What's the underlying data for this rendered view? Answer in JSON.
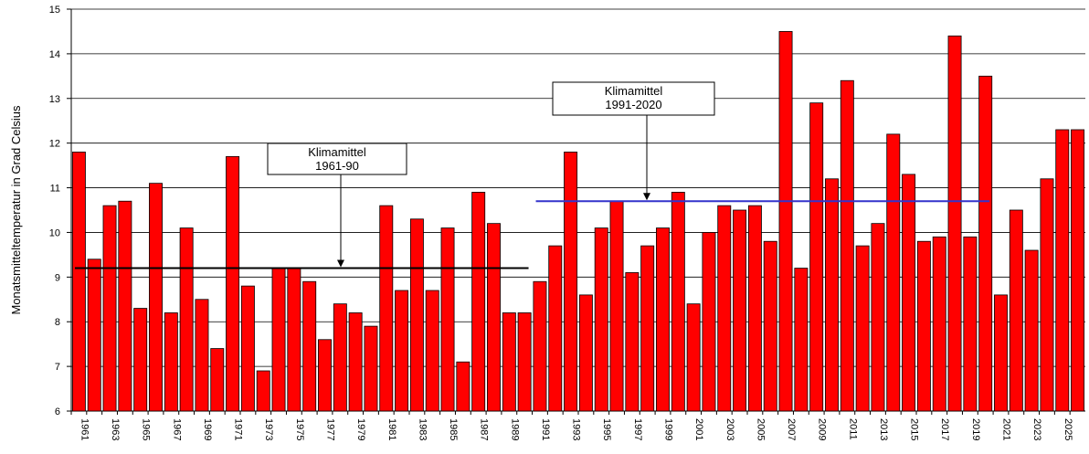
{
  "chart_data": {
    "type": "bar",
    "y_label": "Monatsmitteltemperatur in Grad Celsius",
    "categories": [
      "1961",
      null,
      "1963",
      null,
      "1965",
      null,
      "1967",
      null,
      "1969",
      null,
      "1971",
      null,
      "1973",
      null,
      "1975",
      null,
      "1977",
      null,
      "1979",
      null,
      "1981",
      null,
      "1983",
      null,
      "1985",
      null,
      "1987",
      null,
      "1989",
      null,
      "1991",
      null,
      "1993",
      null,
      "1995",
      null,
      "1997",
      null,
      "1999",
      null,
      "2001",
      null,
      "2003",
      null,
      "2005",
      null,
      "2007",
      null,
      "2009",
      null,
      "2011",
      null,
      "2013",
      null,
      "2015",
      null,
      "2017",
      null,
      "2019",
      null,
      "2021",
      null,
      "2023",
      null,
      "2025",
      null
    ],
    "values": [
      11.8,
      9.4,
      10.6,
      10.7,
      8.3,
      11.1,
      8.2,
      10.1,
      8.5,
      7.4,
      11.7,
      8.8,
      6.9,
      9.2,
      9.2,
      8.9,
      7.6,
      8.4,
      8.2,
      7.9,
      10.6,
      8.7,
      10.3,
      8.7,
      10.1,
      7.1,
      10.9,
      10.2,
      8.2,
      8.2,
      8.9,
      9.7,
      11.8,
      8.6,
      10.1,
      10.7,
      9.1,
      9.7,
      10.1,
      10.9,
      8.4,
      10.0,
      10.6,
      10.5,
      10.6,
      9.8,
      14.5,
      9.2,
      12.9,
      11.2,
      13.4,
      9.7,
      10.2,
      12.2,
      11.3,
      9.8,
      9.9,
      14.4,
      9.9,
      13.5,
      8.6,
      10.5,
      9.6,
      11.2,
      12.3,
      12.3
    ],
    "color": "#ff0000",
    "ylim": [
      6,
      15
    ],
    "yticks": [
      6,
      7,
      8,
      9,
      10,
      11,
      12,
      13,
      14,
      15
    ],
    "grid": true,
    "reference_lines": [
      {
        "label_lines": [
          "Klimamittel",
          "1961-90"
        ],
        "value": 9.2,
        "color": "#000000"
      },
      {
        "label_lines": [
          "Klimamittel",
          "1991-2020"
        ],
        "value": 10.7,
        "color": "#3333cc"
      }
    ]
  }
}
